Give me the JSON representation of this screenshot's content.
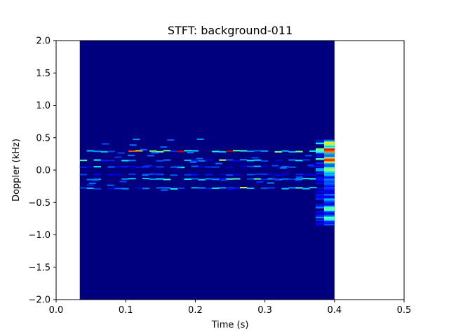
{
  "chart_data": {
    "type": "heatmap",
    "title": "STFT: background-011",
    "xlabel": "Time (s)",
    "ylabel": "Doppler (kHz)",
    "xlim": [
      0.0,
      0.5
    ],
    "ylim": [
      -2.0,
      2.0
    ],
    "grid": false,
    "colormap": "jet",
    "background_color": "#00007f",
    "data_extent": {
      "t_start": 0.034,
      "t_end": 0.4
    },
    "x_ticks": [
      "0.0",
      "0.1",
      "0.2",
      "0.3",
      "0.4",
      "0.5"
    ],
    "x_tick_values": [
      0.0,
      0.1,
      0.2,
      0.3,
      0.4,
      0.5
    ],
    "y_ticks": [
      "−2.0",
      "−1.5",
      "−1.0",
      "−0.5",
      "0.0",
      "0.5",
      "1.0",
      "1.5",
      "2.0"
    ],
    "y_tick_values": [
      -2.0,
      -1.5,
      -1.0,
      -0.5,
      0.0,
      0.5,
      1.0,
      1.5,
      2.0
    ],
    "bands": [
      {
        "doppler_khz": 0.29,
        "intensity": 0.45
      },
      {
        "doppler_khz": 0.15,
        "intensity": 0.3
      },
      {
        "doppler_khz": 0.05,
        "intensity": 0.18
      },
      {
        "doppler_khz": -0.07,
        "intensity": 0.18
      },
      {
        "doppler_khz": -0.14,
        "intensity": 0.35
      },
      {
        "doppler_khz": -0.28,
        "intensity": 0.28
      }
    ],
    "burst": {
      "t_start": 0.385,
      "t_end": 0.4,
      "doppler_min_khz": -0.85,
      "doppler_max_khz": 0.47,
      "peaks": [
        {
          "doppler_khz": 0.3,
          "intensity": 1.0
        },
        {
          "doppler_khz": 0.15,
          "intensity": 0.95
        },
        {
          "doppler_khz": 0.4,
          "intensity": 0.7
        },
        {
          "doppler_khz": 0.0,
          "intensity": 0.6
        },
        {
          "doppler_khz": -0.6,
          "intensity": 0.55
        },
        {
          "doppler_khz": -0.75,
          "intensity": 0.5
        }
      ]
    }
  }
}
